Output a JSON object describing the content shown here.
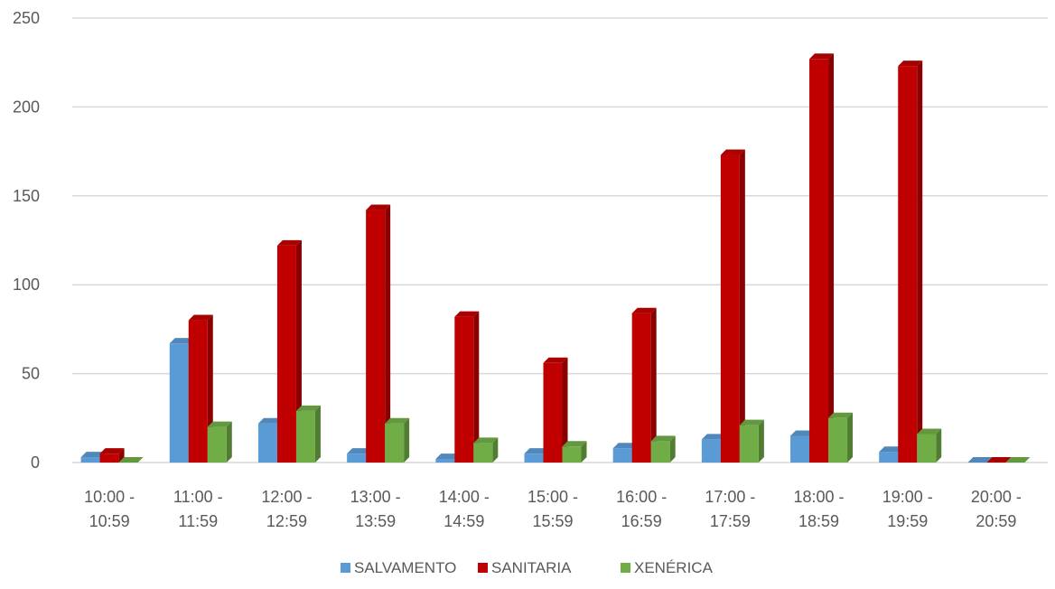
{
  "chart_data": {
    "type": "bar",
    "title": "",
    "xlabel": "",
    "ylabel": "",
    "ylim": [
      0,
      250
    ],
    "yticks": [
      0,
      50,
      100,
      150,
      200,
      250
    ],
    "grid": true,
    "legend_position": "bottom",
    "categories": [
      [
        "10:00 -",
        "10:59"
      ],
      [
        "11:00 -",
        "11:59"
      ],
      [
        "12:00 -",
        "12:59"
      ],
      [
        "13:00 -",
        "13:59"
      ],
      [
        "14:00 -",
        "14:59"
      ],
      [
        "15:00 -",
        "15:59"
      ],
      [
        "16:00 -",
        "16:59"
      ],
      [
        "17:00 -",
        "17:59"
      ],
      [
        "18:00 -",
        "18:59"
      ],
      [
        "19:00 -",
        "19:59"
      ],
      [
        "20:00 -",
        "20:59"
      ]
    ],
    "series": [
      {
        "name": "SALVAMENTO",
        "color": "#5b9bd5",
        "values": [
          3,
          67,
          22,
          5,
          2,
          5,
          8,
          13,
          15,
          6,
          0
        ]
      },
      {
        "name": "SANITARIA",
        "color": "#c00000",
        "values": [
          5,
          80,
          122,
          142,
          82,
          56,
          84,
          173,
          227,
          223,
          0
        ]
      },
      {
        "name": "XENÉRICA",
        "color": "#70ad47",
        "values": [
          0,
          20,
          29,
          22,
          11,
          9,
          12,
          21,
          25,
          16,
          0
        ]
      }
    ]
  }
}
